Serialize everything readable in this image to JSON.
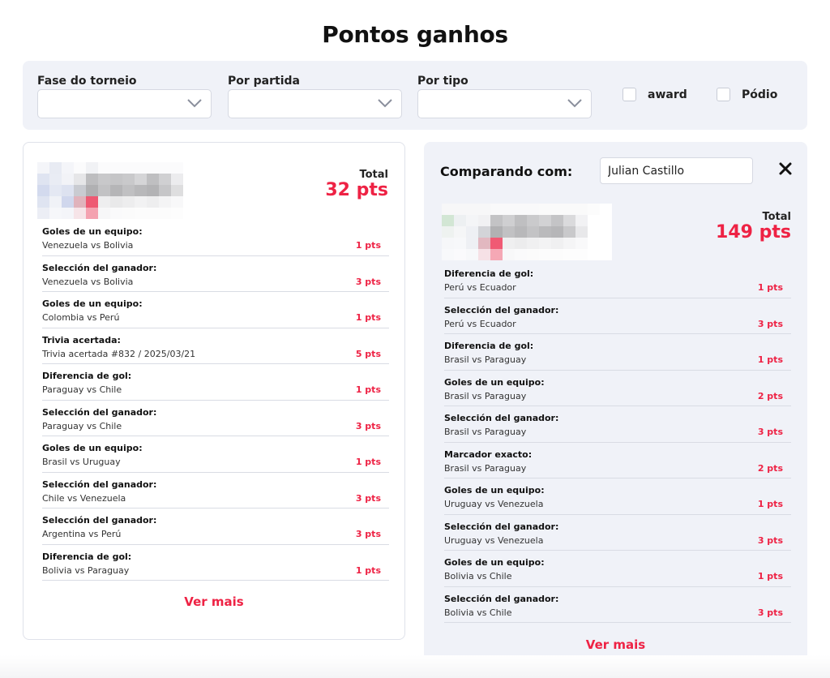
{
  "page": {
    "title": "Pontos ganhos"
  },
  "filters": {
    "fase": {
      "label": "Fase do torneio",
      "value": ""
    },
    "partida": {
      "label": "Por partida",
      "value": ""
    },
    "tipo": {
      "label": "Por tipo",
      "value": ""
    },
    "award": {
      "label": "award",
      "checked": false
    },
    "podio": {
      "label": "Pódio",
      "checked": false
    }
  },
  "colors": {
    "accent": "#ee2244",
    "panel": "#f0f2f8",
    "border": "#dfe2ea"
  },
  "left": {
    "total_label": "Total",
    "total_value": "32 pts",
    "items": [
      {
        "type": "Goles de un equipo:",
        "detail": "Venezuela vs Bolivia",
        "pts": "1 pts"
      },
      {
        "type": "Selección del ganador:",
        "detail": "Venezuela vs Bolivia",
        "pts": "3 pts"
      },
      {
        "type": "Goles de un equipo:",
        "detail": "Colombia vs Perú",
        "pts": "1 pts"
      },
      {
        "type": "Trivia acertada:",
        "detail": "Trivia acertada #832 / 2025/03/21",
        "pts": "5 pts"
      },
      {
        "type": "Diferencia de gol:",
        "detail": "Paraguay vs Chile",
        "pts": "1 pts"
      },
      {
        "type": "Selección del ganador:",
        "detail": "Paraguay vs Chile",
        "pts": "3 pts"
      },
      {
        "type": "Goles de un equipo:",
        "detail": "Brasil vs Uruguay",
        "pts": "1 pts"
      },
      {
        "type": "Selección del ganador:",
        "detail": "Chile vs Venezuela",
        "pts": "3 pts"
      },
      {
        "type": "Selección del ganador:",
        "detail": "Argentina vs Perú",
        "pts": "3 pts"
      },
      {
        "type": "Diferencia de gol:",
        "detail": "Bolivia vs Paraguay",
        "pts": "1 pts"
      }
    ],
    "more_label": "Ver mais"
  },
  "right": {
    "compare_label": "Comparando com:",
    "compare_value": "Julian Castillo",
    "close_icon": "close-icon",
    "total_label": "Total",
    "total_value": "149 pts",
    "items": [
      {
        "type": "Diferencia de gol:",
        "detail": "Perú vs Ecuador",
        "pts": "1 pts"
      },
      {
        "type": "Selección del ganador:",
        "detail": "Perú vs Ecuador",
        "pts": "3 pts"
      },
      {
        "type": "Diferencia de gol:",
        "detail": "Brasil vs Paraguay",
        "pts": "1 pts"
      },
      {
        "type": "Goles de un equipo:",
        "detail": "Brasil vs Paraguay",
        "pts": "2 pts"
      },
      {
        "type": "Selección del ganador:",
        "detail": "Brasil vs Paraguay",
        "pts": "3 pts"
      },
      {
        "type": "Marcador exacto:",
        "detail": "Brasil vs Paraguay",
        "pts": "2 pts"
      },
      {
        "type": "Goles de un equipo:",
        "detail": "Uruguay vs Venezuela",
        "pts": "1 pts"
      },
      {
        "type": "Selección del ganador:",
        "detail": "Uruguay vs Venezuela",
        "pts": "3 pts"
      },
      {
        "type": "Goles de un equipo:",
        "detail": "Bolivia vs Chile",
        "pts": "1 pts"
      },
      {
        "type": "Selección del ganador:",
        "detail": "Bolivia vs Chile",
        "pts": "3 pts"
      }
    ],
    "more_label": "Ver mais"
  }
}
